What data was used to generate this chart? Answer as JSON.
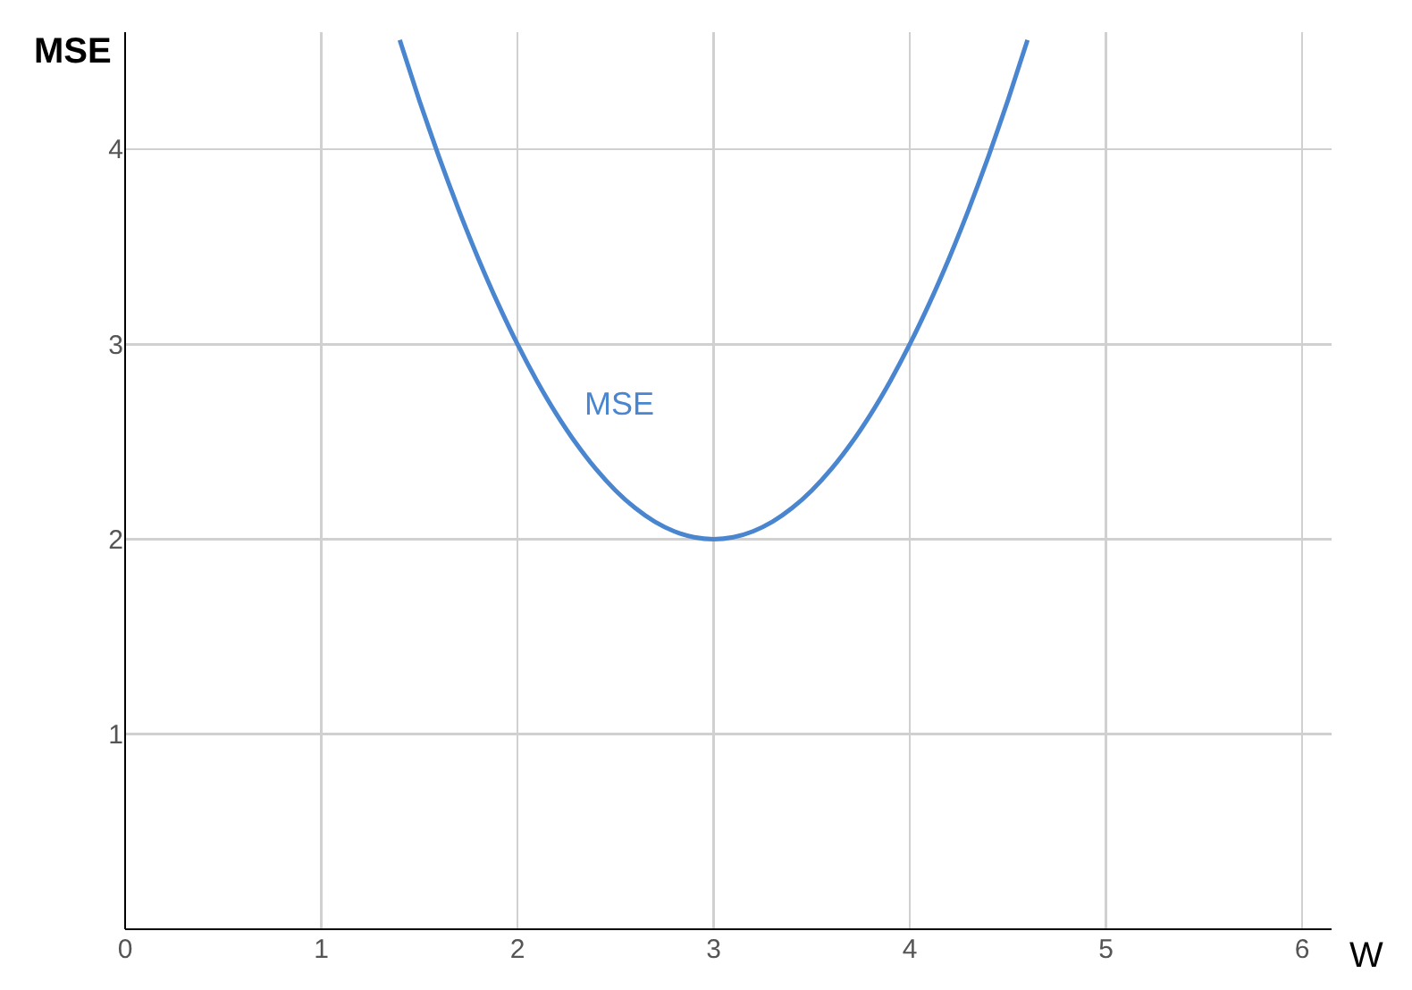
{
  "chart_data": {
    "type": "line",
    "xlabel": "W",
    "ylabel": "MSE",
    "x": [
      1.4,
      1.5,
      1.6,
      1.7,
      1.8,
      1.9,
      2.0,
      2.1,
      2.2,
      2.3,
      2.4,
      2.5,
      2.6,
      2.7,
      2.8,
      2.9,
      3.0,
      3.1,
      3.2,
      3.3,
      3.4,
      3.5,
      3.6,
      3.7,
      3.8,
      3.9,
      4.0,
      4.1,
      4.2,
      4.3,
      4.4,
      4.5,
      4.6
    ],
    "series": [
      {
        "name": "MSE",
        "color": "#4a86cf",
        "values": [
          4.56,
          4.25,
          3.96,
          3.69,
          3.44,
          3.21,
          3.0,
          2.81,
          2.64,
          2.49,
          2.36,
          2.25,
          2.16,
          2.09,
          2.04,
          2.01,
          2.0,
          2.01,
          2.04,
          2.09,
          2.16,
          2.25,
          2.36,
          2.49,
          2.64,
          2.81,
          3.0,
          3.21,
          3.44,
          3.69,
          3.96,
          4.25,
          4.56
        ]
      }
    ],
    "xlim": [
      0,
      6.15
    ],
    "ylim": [
      0,
      4.6
    ],
    "xticks": [
      0,
      1,
      2,
      3,
      4,
      5,
      6
    ],
    "yticks": [
      1,
      2,
      3,
      4
    ],
    "grid": true,
    "legend": false,
    "marker": "none",
    "line_style": "solid"
  }
}
